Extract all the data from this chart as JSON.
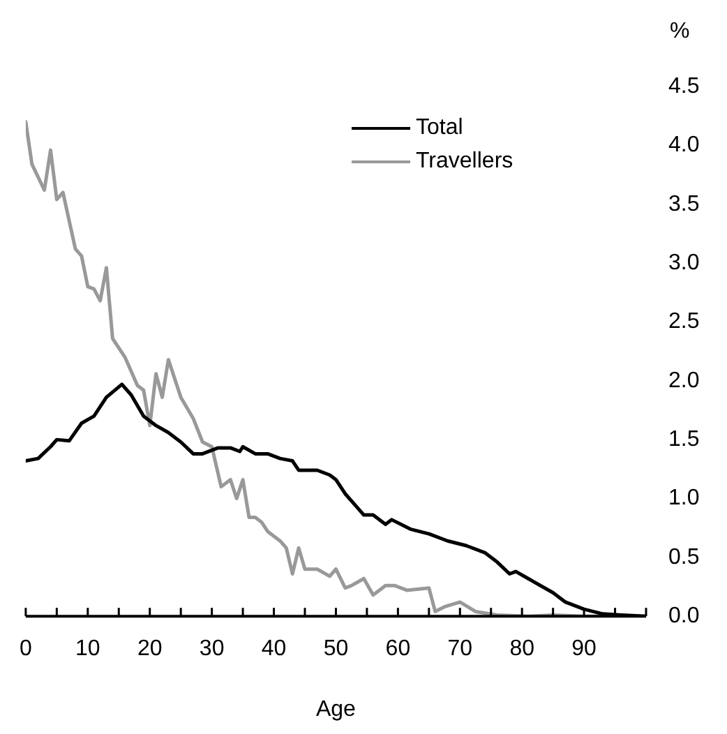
{
  "chart_data": {
    "type": "line",
    "xlabel": "Age",
    "ylabel": "%",
    "legend": "top right",
    "grid": false,
    "marker": "none",
    "line_style": "solid",
    "xlim": [
      0,
      100
    ],
    "xticks": [
      0,
      {
        "value": 5,
        "label": null
      },
      10,
      {
        "value": 15,
        "label": null
      },
      20,
      {
        "value": 25,
        "label": null
      },
      30,
      {
        "value": 35,
        "label": null
      },
      40,
      {
        "value": 45,
        "label": null
      },
      50,
      {
        "value": 55,
        "label": null
      },
      60,
      {
        "value": 65,
        "label": null
      },
      70,
      {
        "value": 75,
        "label": null
      },
      80,
      {
        "value": 85,
        "label": null
      },
      90,
      {
        "value": 95,
        "label": null
      },
      {
        "value": 100,
        "label": null
      }
    ],
    "ylim": [
      0,
      4.5
    ],
    "yticks": [
      {
        "value": 0,
        "label": "0.0"
      },
      {
        "value": 0.5,
        "label": "0.5"
      },
      {
        "value": 1,
        "label": "1.0"
      },
      {
        "value": 1.5,
        "label": "1.5"
      },
      {
        "value": 2,
        "label": "2.0"
      },
      {
        "value": 2.5,
        "label": "2.5"
      },
      {
        "value": 3,
        "label": "3.0"
      },
      {
        "value": 3.5,
        "label": "3.5"
      },
      {
        "value": 4,
        "label": "4.0"
      },
      {
        "value": 4.5,
        "label": "4.5"
      }
    ],
    "series": [
      {
        "name": "Total",
        "color": "#000000",
        "x": [
          0,
          2,
          4,
          5,
          7,
          9,
          11,
          13,
          15.5,
          17,
          19,
          21,
          23,
          25,
          27,
          28.5,
          31,
          33,
          34.5,
          35,
          37,
          39,
          41,
          43,
          44,
          47,
          49,
          50,
          51.5,
          54.5,
          56,
          58,
          59,
          62,
          65,
          68,
          71,
          74,
          76,
          78,
          79,
          81,
          85,
          87,
          90,
          93,
          96,
          100
        ],
        "values": [
          1.32,
          1.34,
          1.44,
          1.5,
          1.49,
          1.64,
          1.7,
          1.86,
          1.97,
          1.88,
          1.7,
          1.62,
          1.56,
          1.48,
          1.38,
          1.38,
          1.43,
          1.43,
          1.4,
          1.44,
          1.38,
          1.38,
          1.34,
          1.32,
          1.24,
          1.24,
          1.2,
          1.16,
          1.04,
          0.86,
          0.86,
          0.78,
          0.82,
          0.74,
          0.7,
          0.64,
          0.6,
          0.54,
          0.46,
          0.36,
          0.38,
          0.32,
          0.2,
          0.12,
          0.06,
          0.02,
          0.01,
          0
        ]
      },
      {
        "name": "Travellers",
        "color": "#999999",
        "x": [
          0,
          1,
          3,
          4,
          5,
          6,
          8,
          9,
          10,
          11,
          12,
          13,
          14,
          15,
          16,
          18,
          19,
          20,
          21,
          22,
          23,
          25,
          27,
          28.5,
          30,
          31.5,
          33,
          34,
          35,
          36,
          37,
          38,
          39,
          41,
          42,
          43,
          44,
          45,
          47,
          49,
          50,
          51.5,
          52.5,
          54.5,
          56,
          58,
          59.5,
          61.5,
          65,
          66,
          67.5,
          70,
          72.5,
          76,
          81,
          85,
          90,
          100
        ],
        "values": [
          4.2,
          3.84,
          3.62,
          3.96,
          3.54,
          3.6,
          3.12,
          3.06,
          2.8,
          2.78,
          2.68,
          2.96,
          2.36,
          2.28,
          2.2,
          1.96,
          1.92,
          1.62,
          2.06,
          1.86,
          2.18,
          1.86,
          1.68,
          1.48,
          1.44,
          1.1,
          1.16,
          1,
          1.16,
          0.84,
          0.84,
          0.8,
          0.72,
          0.64,
          0.58,
          0.36,
          0.58,
          0.4,
          0.4,
          0.34,
          0.4,
          0.24,
          0.26,
          0.32,
          0.18,
          0.26,
          0.26,
          0.22,
          0.24,
          0.04,
          0.08,
          0.12,
          0.04,
          0.01,
          0,
          0.01,
          0,
          0
        ]
      }
    ]
  }
}
